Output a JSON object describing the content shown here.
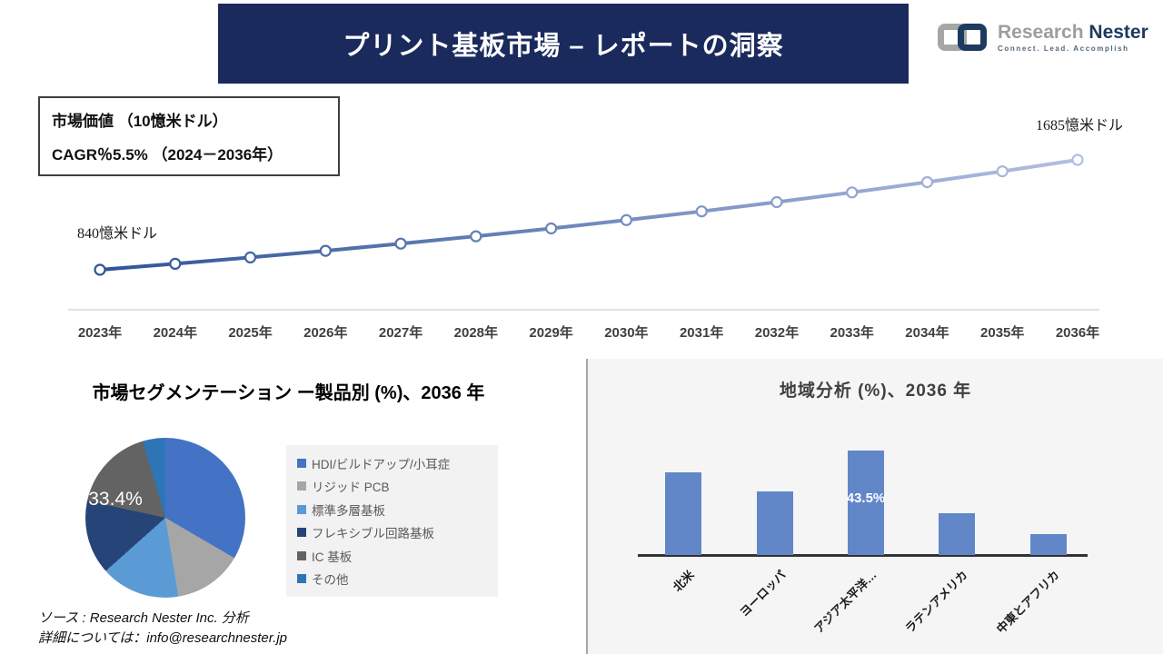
{
  "banner": {
    "title": "プリント基板市場 – レポートの洞察"
  },
  "logo": {
    "name_part1": "Research",
    "name_part2": " Nester",
    "tagline": "Connect. Lead. Accomplish",
    "icon": "interlocked-squares-icon",
    "colors": {
      "gray": "#9d9d9c",
      "navy": "#1d3a5f"
    }
  },
  "value_box": {
    "line1": "市場価値 （10憶米ドル）",
    "line2": "CAGR％5.5% （2024－2036年）"
  },
  "chart_data": [
    {
      "type": "line",
      "title": "市場価値（10憶米ドル）2023-2036",
      "x": [
        "2023年",
        "2024年",
        "2025年",
        "2026年",
        "2027年",
        "2028年",
        "2029年",
        "2030年",
        "2031年",
        "2032年",
        "2033年",
        "2034年",
        "2035年",
        "2036年"
      ],
      "values": [
        840,
        886,
        935,
        986,
        1041,
        1098,
        1158,
        1222,
        1289,
        1360,
        1435,
        1514,
        1597,
        1685
      ],
      "start_label": "840憶米ドル",
      "end_label": "1685憶米ドル",
      "cagr_pct": 5.5,
      "ylim": [
        840,
        1685
      ],
      "marker": "open-circle",
      "line_gradient": [
        "#2f5597",
        "#b3bfe2"
      ],
      "axis_color": "#d9d9d9",
      "grid": false
    },
    {
      "type": "pie",
      "title": "市場セグメンテーション ー製品別 (%)、2036 年",
      "labels": [
        "HDI/ビルドアップ/小耳症",
        "リジッド PCB",
        "標準多層基板",
        "フレキシブル回路基板",
        "IC 基板",
        "その他"
      ],
      "values": [
        33.4,
        14.0,
        16.0,
        15.0,
        17.0,
        4.6
      ],
      "colors": [
        "#4472C4",
        "#A6A6A6",
        "#5B9BD5",
        "#264478",
        "#636363",
        "#2E75B6"
      ],
      "labeled_slice": {
        "index": 0,
        "text": "33.4%"
      },
      "legend_position": "right",
      "start_angle_deg": 0
    },
    {
      "type": "bar",
      "title": "地域分析 (%)、2036 年",
      "categories": [
        "北米",
        "ヨーロッパ",
        "アジア太平洋…",
        "ラテンアメリカ",
        "中東とアフリカ"
      ],
      "values": [
        34.5,
        26.5,
        43.5,
        17.5,
        8.7
      ],
      "labeled_bar": {
        "index": 2,
        "text": "43.5%"
      },
      "bar_color": "#6287c9",
      "ylim": [
        0,
        50
      ],
      "grid": false
    }
  ],
  "source": {
    "line1": "ソース : Research Nester Inc. 分析",
    "line2": "詳細については：info@researchnester.jp"
  }
}
